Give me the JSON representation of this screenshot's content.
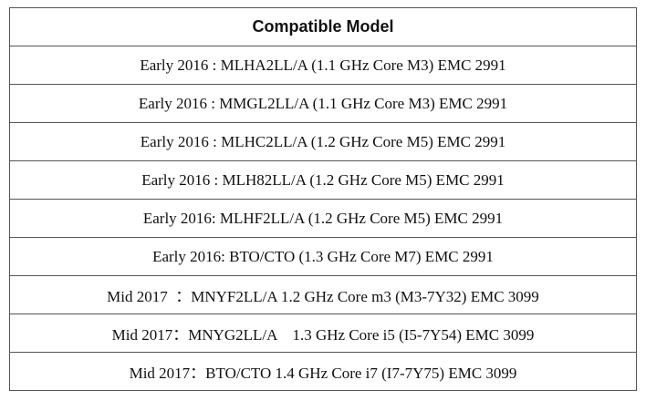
{
  "table": {
    "header": "Compatible Model",
    "rows": [
      "Early 2016 : MLHA2LL/A (1.1 GHz Core M3) EMC 2991",
      "Early 2016 : MMGL2LL/A (1.1 GHz Core M3) EMC 2991",
      "Early 2016 : MLHC2LL/A (1.2 GHz Core M5) EMC 2991",
      "Early 2016 : MLH82LL/A (1.2 GHz Core M5) EMC 2991",
      "Early 2016: MLHF2LL/A (1.2 GHz Core M5) EMC 2991",
      "Early 2016: BTO/CTO (1.3 GHz Core M7) EMC 2991",
      "Mid 2017  ：MNYF2LL/A 1.2 GHz Core m3 (M3-7Y32) EMC 3099",
      "Mid 2017：MNYG2LL/A    1.3 GHz Core i5 (I5-7Y54) EMC 3099",
      "Mid 2017：BTO/CTO 1.4 GHz Core i7 (I7-7Y75) EMC 3099"
    ]
  }
}
